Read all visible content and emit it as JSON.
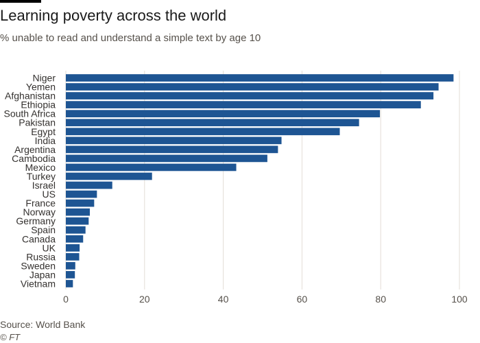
{
  "chart_data": {
    "type": "bar",
    "orientation": "horizontal",
    "title": "Learning poverty across the world",
    "subtitle": "% unable to read and understand a simple text by age 10",
    "xlabel": "",
    "ylabel": "",
    "xlim": [
      0,
      100
    ],
    "xticks": [
      0,
      20,
      40,
      60,
      80,
      100
    ],
    "grid": true,
    "categories": [
      "Niger",
      "Yemen",
      "Afghanistan",
      "Ethiopia",
      "South Africa",
      "Pakistan",
      "Egypt",
      "India",
      "Argentina",
      "Cambodia",
      "Mexico",
      "Turkey",
      "Israel",
      "US",
      "France",
      "Norway",
      "Germany",
      "Spain",
      "Canada",
      "UK",
      "Russia",
      "Sweden",
      "Japan",
      "Vietnam"
    ],
    "values": [
      98.5,
      94.7,
      93.4,
      90.2,
      79.8,
      74.5,
      69.6,
      54.8,
      53.9,
      51.2,
      43.3,
      21.9,
      11.8,
      7.9,
      7.2,
      6.1,
      5.8,
      5.0,
      4.4,
      3.5,
      3.4,
      2.4,
      2.3,
      1.8
    ],
    "bar_color": "#1e5593"
  },
  "source": "Source: World Bank",
  "credit": "© FT"
}
